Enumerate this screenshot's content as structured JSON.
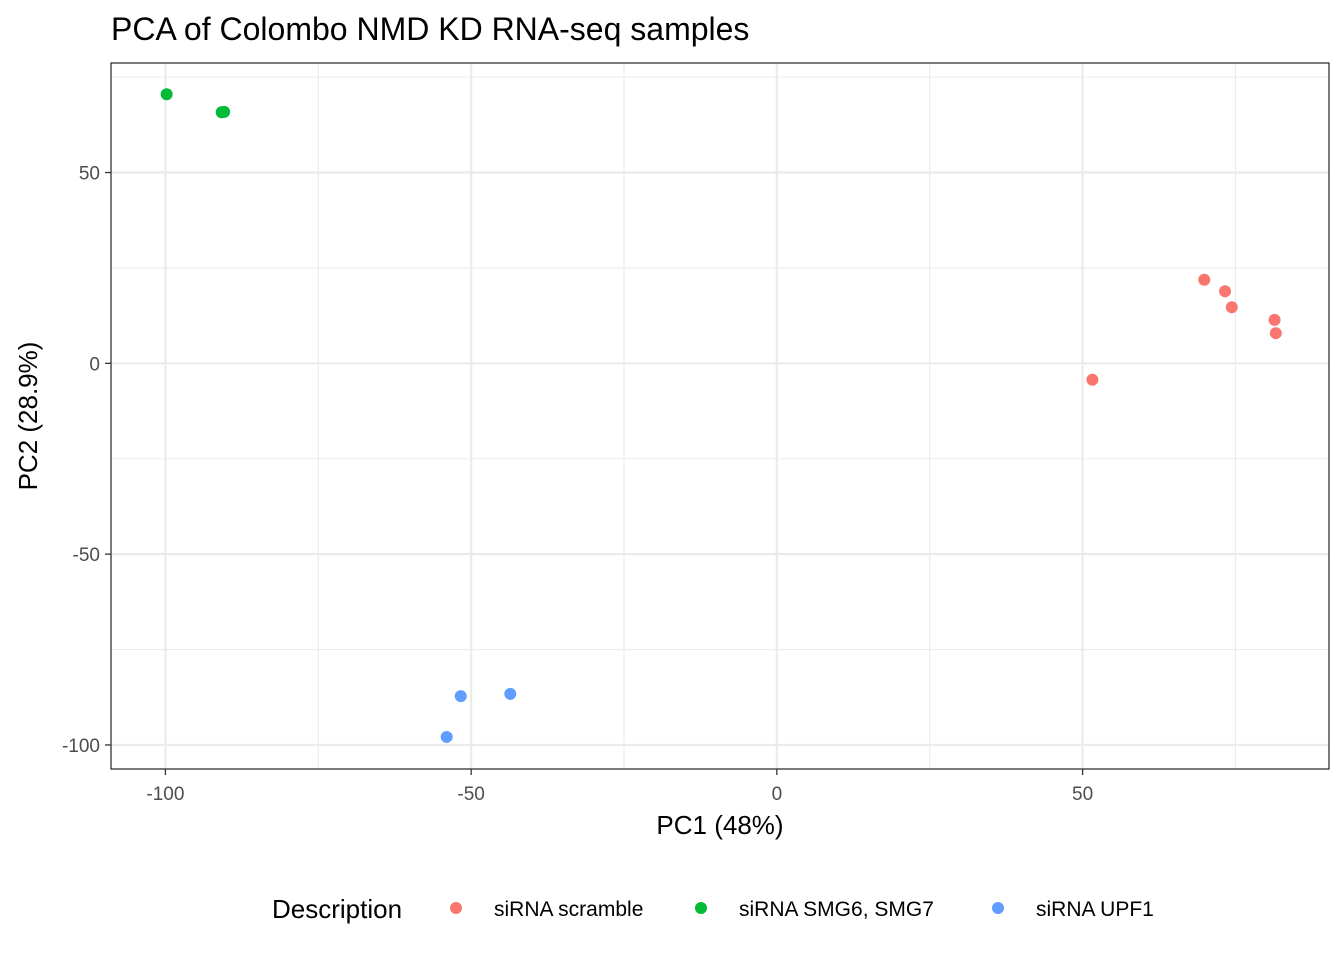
{
  "chart_data": {
    "type": "scatter",
    "title": "PCA of Colombo NMD KD RNA-seq samples",
    "xlabel": "PC1 (48%)",
    "ylabel": "PC2 (28.9%)",
    "xlim": [
      -108.9,
      90.3
    ],
    "ylim": [
      -106.3,
      78.7
    ],
    "x_ticks": [
      -100,
      -50,
      0,
      50
    ],
    "x_tick_labels": [
      "-100",
      "-50",
      "0",
      "50"
    ],
    "y_ticks": [
      -100,
      -50,
      0,
      50
    ],
    "y_tick_labels": [
      "-100",
      "-50",
      "0",
      "50"
    ],
    "x_minor_ticks": [
      -75,
      -25,
      25,
      75
    ],
    "y_minor_ticks": [
      -75,
      -25,
      25,
      75
    ],
    "grid": true,
    "legend": {
      "title": "Description",
      "position": "bottom"
    },
    "series": [
      {
        "name": "siRNA scramble",
        "color": "#F8766D",
        "x": [
          51.6,
          69.9,
          73.3,
          74.4,
          81.4,
          81.6
        ],
        "y": [
          -4.3,
          21.9,
          18.9,
          14.7,
          11.4,
          7.9
        ]
      },
      {
        "name": "siRNA SMG6, SMG7",
        "color": "#00BA38",
        "x": [
          -99.8,
          -90.8,
          -90.4
        ],
        "y": [
          70.5,
          65.8,
          65.9
        ]
      },
      {
        "name": "siRNA UPF1",
        "color": "#619CFF",
        "x": [
          -54.0,
          -51.7,
          -43.6
        ],
        "y": [
          -97.9,
          -87.2,
          -86.6
        ]
      }
    ]
  }
}
